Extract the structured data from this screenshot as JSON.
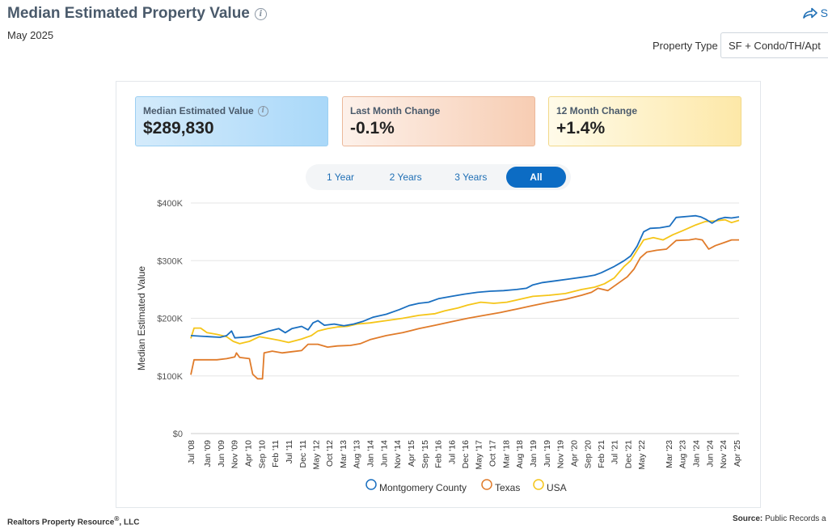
{
  "header": {
    "title": "Median Estimated Property Value",
    "subtitle": "May 2025",
    "share_label": "S"
  },
  "filter": {
    "property_type_label": "Property Type",
    "property_type_value": "SF + Condo/TH/Apt"
  },
  "cards": [
    {
      "label": "Median Estimated Value",
      "value": "$289,830"
    },
    {
      "label": "Last Month Change",
      "value": "-0.1%"
    },
    {
      "label": "12 Month Change",
      "value": "+1.4%"
    }
  ],
  "tabs": [
    "1 Year",
    "2 Years",
    "3 Years",
    "All"
  ],
  "active_tab": "All",
  "footer": {
    "left": "Realtors Property Resource",
    "left_sup": "®",
    "left_suffix": ", LLC",
    "right_label": "Source:",
    "right_value": "Public Records a"
  },
  "chart_data": {
    "type": "line",
    "ylabel": "Median Estimated Value",
    "ylim": [
      0,
      400000
    ],
    "yticks": [
      0,
      100000,
      200000,
      300000,
      400000
    ],
    "ytick_labels": [
      "$0",
      "$100K",
      "$200K",
      "$300K",
      "$400K"
    ],
    "xlim": [
      2008.5,
      2025.33
    ],
    "xticks": [
      {
        "label": "Jul '08",
        "x": 2008.5
      },
      {
        "label": "Jan '09",
        "x": 2009.0
      },
      {
        "label": "Jun '09",
        "x": 2009.42
      },
      {
        "label": "Nov '09",
        "x": 2009.83
      },
      {
        "label": "Apr '10",
        "x": 2010.25
      },
      {
        "label": "Sep '10",
        "x": 2010.67
      },
      {
        "label": "Feb '11",
        "x": 2011.08
      },
      {
        "label": "Jul '11",
        "x": 2011.5
      },
      {
        "label": "Dec '11",
        "x": 2011.92
      },
      {
        "label": "May '12",
        "x": 2012.33
      },
      {
        "label": "Oct '12",
        "x": 2012.75
      },
      {
        "label": "Mar '13",
        "x": 2013.17
      },
      {
        "label": "Aug '13",
        "x": 2013.58
      },
      {
        "label": "Jan '14",
        "x": 2014.0
      },
      {
        "label": "Jun '14",
        "x": 2014.42
      },
      {
        "label": "Nov '14",
        "x": 2014.83
      },
      {
        "label": "Apr '15",
        "x": 2015.25
      },
      {
        "label": "Sep '15",
        "x": 2015.67
      },
      {
        "label": "Feb '16",
        "x": 2016.08
      },
      {
        "label": "Jul '16",
        "x": 2016.5
      },
      {
        "label": "Dec '16",
        "x": 2016.92
      },
      {
        "label": "May '17",
        "x": 2017.33
      },
      {
        "label": "Oct '17",
        "x": 2017.75
      },
      {
        "label": "Mar '18",
        "x": 2018.17
      },
      {
        "label": "Aug '18",
        "x": 2018.58
      },
      {
        "label": "Jan '19",
        "x": 2019.0
      },
      {
        "label": "Jun '19",
        "x": 2019.42
      },
      {
        "label": "Nov '19",
        "x": 2019.83
      },
      {
        "label": "Apr '20",
        "x": 2020.25
      },
      {
        "label": "Sep '20",
        "x": 2020.67
      },
      {
        "label": "Feb '21",
        "x": 2021.08
      },
      {
        "label": "Jul '21",
        "x": 2021.5
      },
      {
        "label": "Dec '21",
        "x": 2021.92
      },
      {
        "label": "May '22",
        "x": 2022.33
      },
      {
        "label": "Mar '23",
        "x": 2023.17
      },
      {
        "label": "Aug '23",
        "x": 2023.58
      },
      {
        "label": "Jan '24",
        "x": 2024.0
      },
      {
        "label": "Jun '24",
        "x": 2024.42
      },
      {
        "label": "Nov '24",
        "x": 2024.83
      },
      {
        "label": "Apr '25",
        "x": 2025.25
      }
    ],
    "grid": true,
    "legend_position": "bottom",
    "series": [
      {
        "name": "Montgomery County",
        "color": "#1a6fc0",
        "points": [
          [
            2008.5,
            170000
          ],
          [
            2008.8,
            169000
          ],
          [
            2009.1,
            168000
          ],
          [
            2009.4,
            167000
          ],
          [
            2009.6,
            170000
          ],
          [
            2009.75,
            178000
          ],
          [
            2009.85,
            166000
          ],
          [
            2010.3,
            168000
          ],
          [
            2010.6,
            172000
          ],
          [
            2010.9,
            178000
          ],
          [
            2011.2,
            182000
          ],
          [
            2011.4,
            175000
          ],
          [
            2011.6,
            182000
          ],
          [
            2011.9,
            186000
          ],
          [
            2012.1,
            180000
          ],
          [
            2012.25,
            192000
          ],
          [
            2012.4,
            196000
          ],
          [
            2012.6,
            188000
          ],
          [
            2012.9,
            190000
          ],
          [
            2013.2,
            187000
          ],
          [
            2013.5,
            190000
          ],
          [
            2013.8,
            195000
          ],
          [
            2014.1,
            202000
          ],
          [
            2014.5,
            207000
          ],
          [
            2014.9,
            215000
          ],
          [
            2015.2,
            222000
          ],
          [
            2015.5,
            226000
          ],
          [
            2015.8,
            228000
          ],
          [
            2016.1,
            234000
          ],
          [
            2016.5,
            238000
          ],
          [
            2016.9,
            242000
          ],
          [
            2017.3,
            245000
          ],
          [
            2017.7,
            247000
          ],
          [
            2018.1,
            248000
          ],
          [
            2018.5,
            250000
          ],
          [
            2018.8,
            252000
          ],
          [
            2019.0,
            258000
          ],
          [
            2019.3,
            262000
          ],
          [
            2019.7,
            265000
          ],
          [
            2020.1,
            268000
          ],
          [
            2020.6,
            272000
          ],
          [
            2020.9,
            275000
          ],
          [
            2021.1,
            279000
          ],
          [
            2021.5,
            290000
          ],
          [
            2021.8,
            300000
          ],
          [
            2022.0,
            308000
          ],
          [
            2022.2,
            325000
          ],
          [
            2022.4,
            350000
          ],
          [
            2022.6,
            356000
          ],
          [
            2022.9,
            357000
          ],
          [
            2023.2,
            360000
          ],
          [
            2023.4,
            375000
          ],
          [
            2023.8,
            377000
          ],
          [
            2024.0,
            378000
          ],
          [
            2024.15,
            376000
          ],
          [
            2024.3,
            372000
          ],
          [
            2024.5,
            365000
          ],
          [
            2024.7,
            372000
          ],
          [
            2024.9,
            375000
          ],
          [
            2025.1,
            374000
          ],
          [
            2025.33,
            376000
          ]
        ]
      },
      {
        "name": "Texas",
        "color": "#e07b2a",
        "points": [
          [
            2008.5,
            102000
          ],
          [
            2008.6,
            128000
          ],
          [
            2008.9,
            128000
          ],
          [
            2009.3,
            128000
          ],
          [
            2009.6,
            130000
          ],
          [
            2009.85,
            133000
          ],
          [
            2009.9,
            140000
          ],
          [
            2010.0,
            132000
          ],
          [
            2010.3,
            130000
          ],
          [
            2010.4,
            103000
          ],
          [
            2010.55,
            95000
          ],
          [
            2010.7,
            95000
          ],
          [
            2010.75,
            140000
          ],
          [
            2011.0,
            143000
          ],
          [
            2011.3,
            140000
          ],
          [
            2011.6,
            142000
          ],
          [
            2011.9,
            144000
          ],
          [
            2012.1,
            155000
          ],
          [
            2012.4,
            155000
          ],
          [
            2012.7,
            150000
          ],
          [
            2013.0,
            152000
          ],
          [
            2013.4,
            153000
          ],
          [
            2013.7,
            156000
          ],
          [
            2014.0,
            163000
          ],
          [
            2014.5,
            170000
          ],
          [
            2015.0,
            175000
          ],
          [
            2015.5,
            182000
          ],
          [
            2016.0,
            188000
          ],
          [
            2016.5,
            194000
          ],
          [
            2017.0,
            200000
          ],
          [
            2017.5,
            205000
          ],
          [
            2018.0,
            210000
          ],
          [
            2018.5,
            216000
          ],
          [
            2019.0,
            222000
          ],
          [
            2019.5,
            228000
          ],
          [
            2020.0,
            233000
          ],
          [
            2020.5,
            240000
          ],
          [
            2020.8,
            245000
          ],
          [
            2021.0,
            252000
          ],
          [
            2021.3,
            248000
          ],
          [
            2021.6,
            260000
          ],
          [
            2021.9,
            272000
          ],
          [
            2022.1,
            285000
          ],
          [
            2022.3,
            305000
          ],
          [
            2022.5,
            315000
          ],
          [
            2022.8,
            318000
          ],
          [
            2023.1,
            320000
          ],
          [
            2023.4,
            335000
          ],
          [
            2023.8,
            336000
          ],
          [
            2024.0,
            338000
          ],
          [
            2024.2,
            336000
          ],
          [
            2024.4,
            320000
          ],
          [
            2024.6,
            326000
          ],
          [
            2024.9,
            332000
          ],
          [
            2025.1,
            336000
          ],
          [
            2025.33,
            336000
          ]
        ]
      },
      {
        "name": "USA",
        "color": "#f5c518",
        "points": [
          [
            2008.5,
            165000
          ],
          [
            2008.6,
            183000
          ],
          [
            2008.8,
            183000
          ],
          [
            2009.0,
            175000
          ],
          [
            2009.3,
            172000
          ],
          [
            2009.6,
            168000
          ],
          [
            2009.8,
            160000
          ],
          [
            2010.0,
            156000
          ],
          [
            2010.3,
            160000
          ],
          [
            2010.6,
            168000
          ],
          [
            2010.9,
            165000
          ],
          [
            2011.2,
            162000
          ],
          [
            2011.5,
            158000
          ],
          [
            2011.9,
            164000
          ],
          [
            2012.2,
            170000
          ],
          [
            2012.4,
            178000
          ],
          [
            2012.7,
            182000
          ],
          [
            2013.0,
            185000
          ],
          [
            2013.3,
            186000
          ],
          [
            2013.6,
            190000
          ],
          [
            2014.0,
            192000
          ],
          [
            2014.5,
            196000
          ],
          [
            2015.0,
            200000
          ],
          [
            2015.5,
            205000
          ],
          [
            2016.0,
            208000
          ],
          [
            2016.3,
            213000
          ],
          [
            2016.7,
            218000
          ],
          [
            2017.0,
            223000
          ],
          [
            2017.4,
            228000
          ],
          [
            2017.8,
            226000
          ],
          [
            2018.2,
            228000
          ],
          [
            2018.6,
            233000
          ],
          [
            2019.0,
            238000
          ],
          [
            2019.5,
            240000
          ],
          [
            2020.0,
            243000
          ],
          [
            2020.5,
            250000
          ],
          [
            2020.9,
            254000
          ],
          [
            2021.2,
            260000
          ],
          [
            2021.5,
            270000
          ],
          [
            2021.8,
            290000
          ],
          [
            2022.0,
            300000
          ],
          [
            2022.2,
            318000
          ],
          [
            2022.4,
            336000
          ],
          [
            2022.7,
            340000
          ],
          [
            2023.0,
            336000
          ],
          [
            2023.3,
            345000
          ],
          [
            2023.6,
            352000
          ],
          [
            2024.0,
            362000
          ],
          [
            2024.3,
            368000
          ],
          [
            2024.6,
            369000
          ],
          [
            2024.9,
            371000
          ],
          [
            2025.1,
            366000
          ],
          [
            2025.33,
            370000
          ]
        ]
      }
    ]
  }
}
